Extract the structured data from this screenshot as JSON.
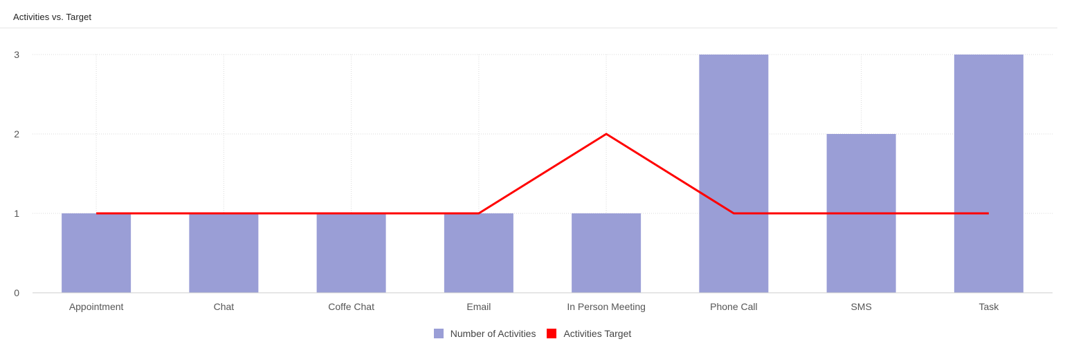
{
  "panel": {
    "title": "Activities vs. Target"
  },
  "colors": {
    "bar": "#9a9ed6",
    "line": "#ff0000",
    "grid": "#d9d9d9",
    "axis": "#cccccc"
  },
  "chart_data": {
    "type": "bar",
    "title": "Activities vs. Target",
    "categories": [
      "Appointment",
      "Chat",
      "Coffe Chat",
      "Email",
      "In Person Meeting",
      "Phone Call",
      "SMS",
      "Task"
    ],
    "series": [
      {
        "name": "Number of Activities",
        "kind": "bar",
        "values": [
          1,
          1,
          1,
          1,
          1,
          3,
          2,
          3
        ]
      },
      {
        "name": "Activities Target",
        "kind": "line",
        "values": [
          1,
          1,
          1,
          1,
          2,
          1,
          1,
          1
        ]
      }
    ],
    "ylim": [
      0,
      3
    ],
    "yticks": [
      "0",
      "1",
      "2",
      "3"
    ],
    "grid": true,
    "legend": "bottom-center"
  }
}
